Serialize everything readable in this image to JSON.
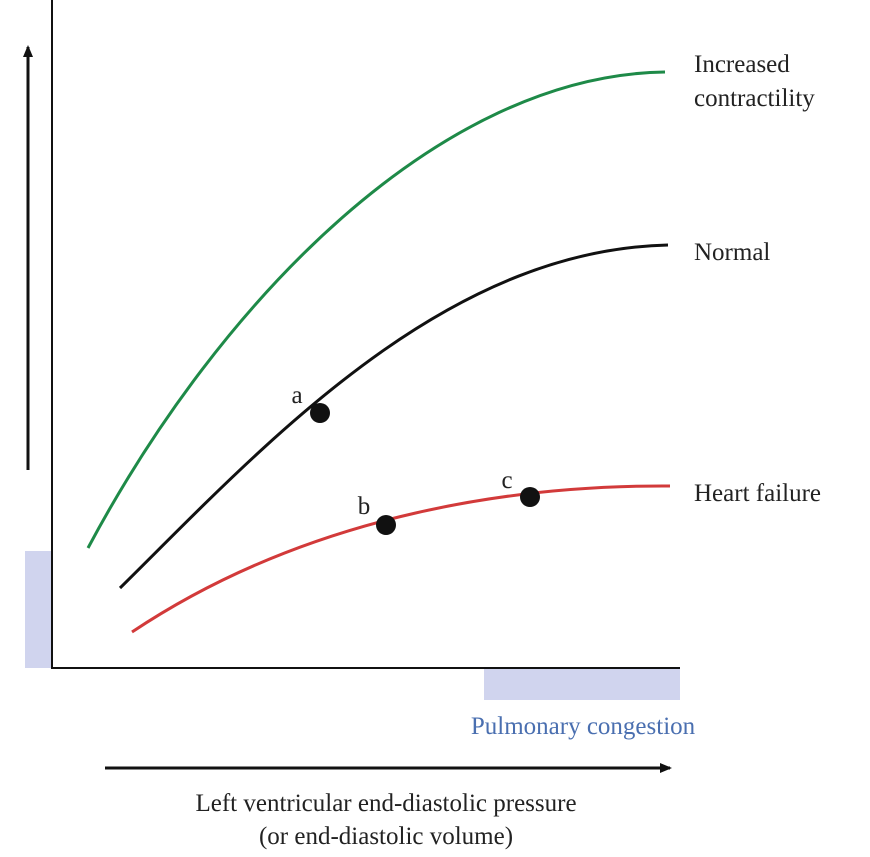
{
  "curves": [
    {
      "label_lines": [
        "Increased",
        "contractility"
      ]
    },
    {
      "label": "Normal"
    },
    {
      "label": "Heart failure"
    }
  ],
  "points": [
    "a",
    "b",
    "c"
  ],
  "shaded_region_label": "Pulmonary congestion",
  "x_axis_label": [
    "Left ventricular end-diastolic pressure",
    "(or end-diastolic volume)"
  ]
}
